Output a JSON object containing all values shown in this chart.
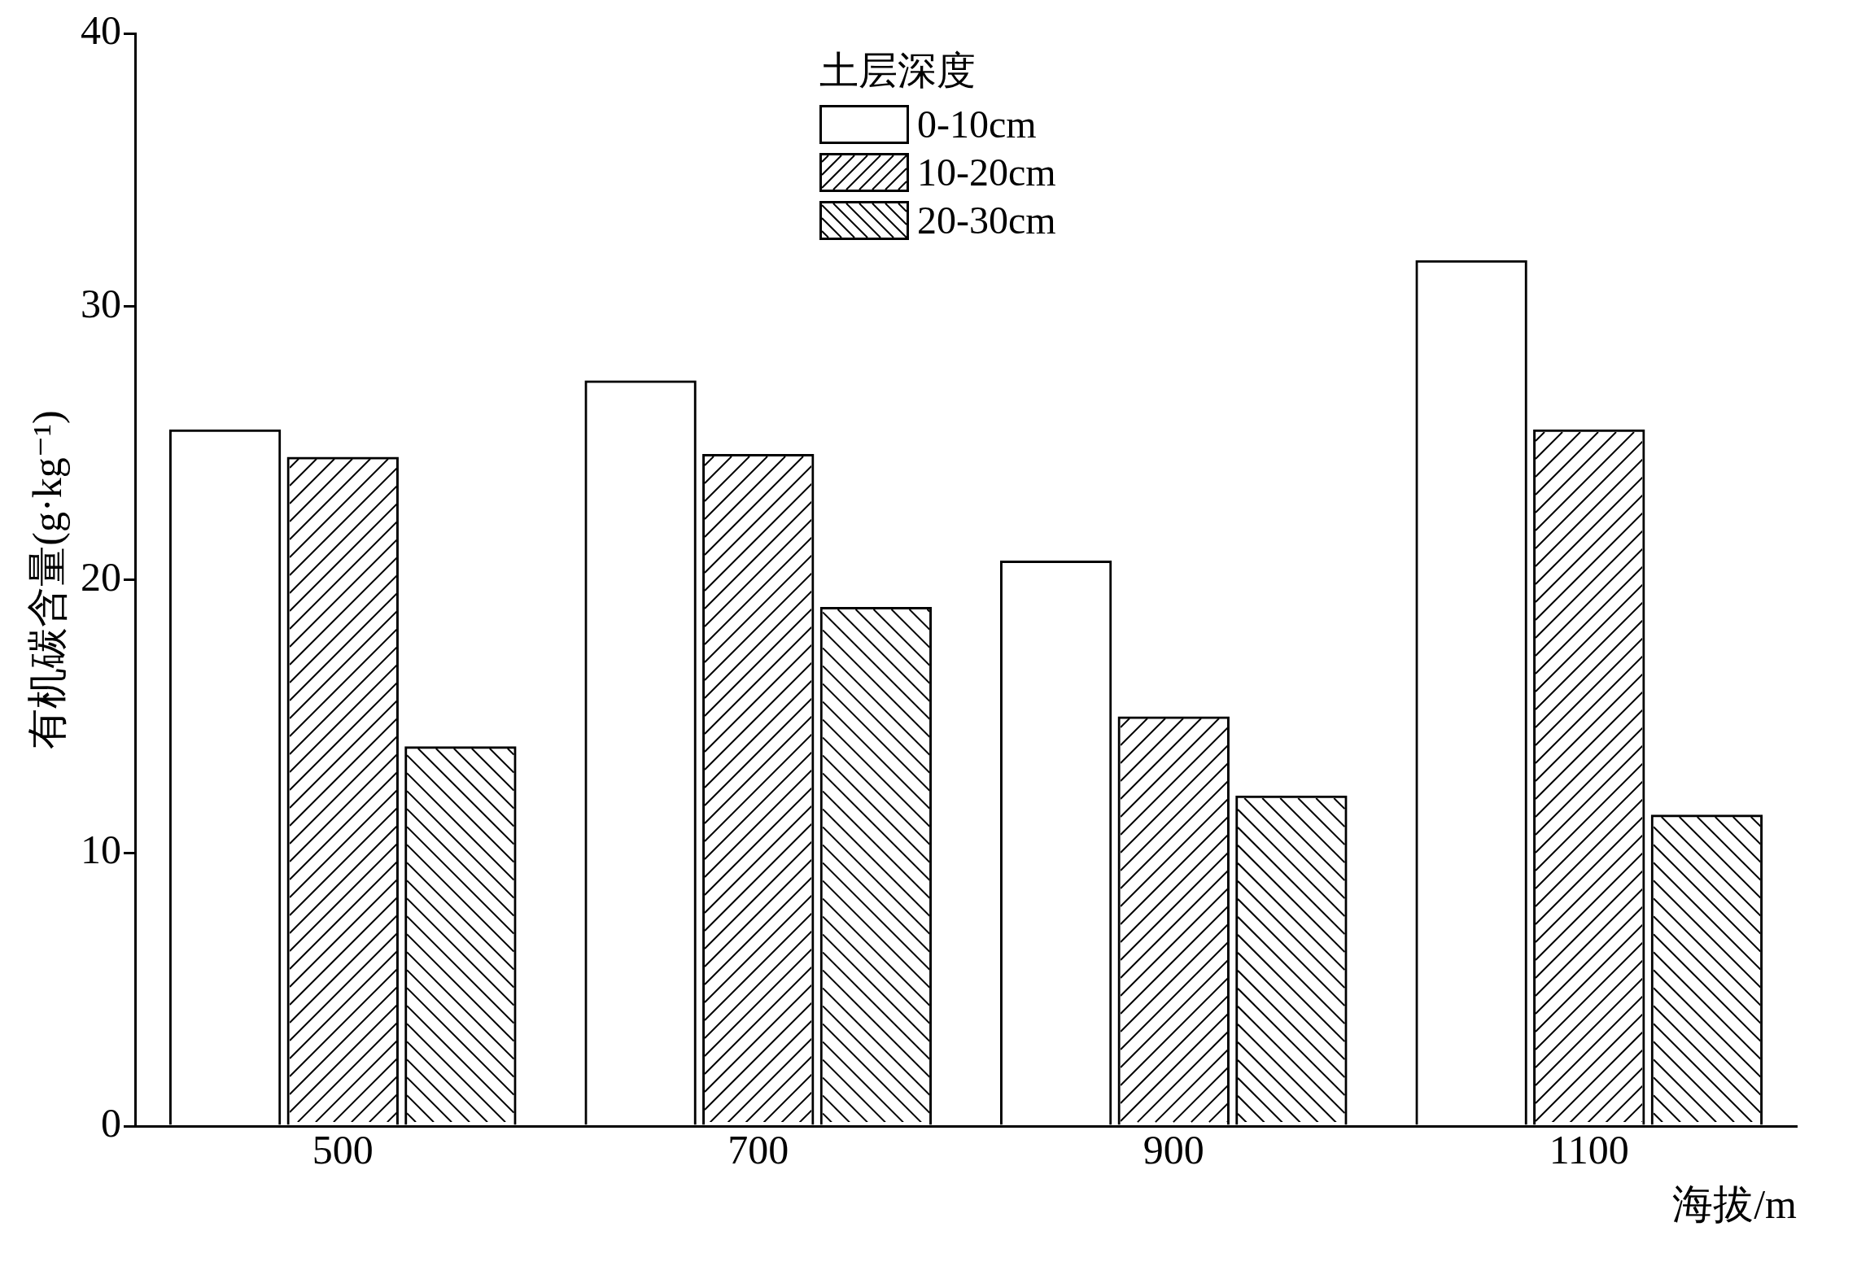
{
  "chart_data": {
    "type": "bar",
    "xlabel": "海拔/m",
    "ylabel": "有机碳含量(g·kg⁻¹)",
    "legend_title": "土层深度",
    "categories": [
      "500",
      "700",
      "900",
      "1100"
    ],
    "series": [
      {
        "name": "0-10cm",
        "color": "#000000",
        "values": [
          25.5,
          27.3,
          20.7,
          31.7
        ]
      },
      {
        "name": "10-20cm",
        "color": "#000000",
        "values": [
          24.5,
          24.6,
          15.0,
          25.5
        ]
      },
      {
        "name": "20-30cm",
        "color": "#000000",
        "values": [
          13.9,
          19.0,
          12.1,
          11.4
        ]
      }
    ],
    "ylim": [
      0,
      40
    ],
    "yticks": [
      0,
      10,
      20,
      30,
      40
    ],
    "grid": false,
    "legend": "top"
  }
}
